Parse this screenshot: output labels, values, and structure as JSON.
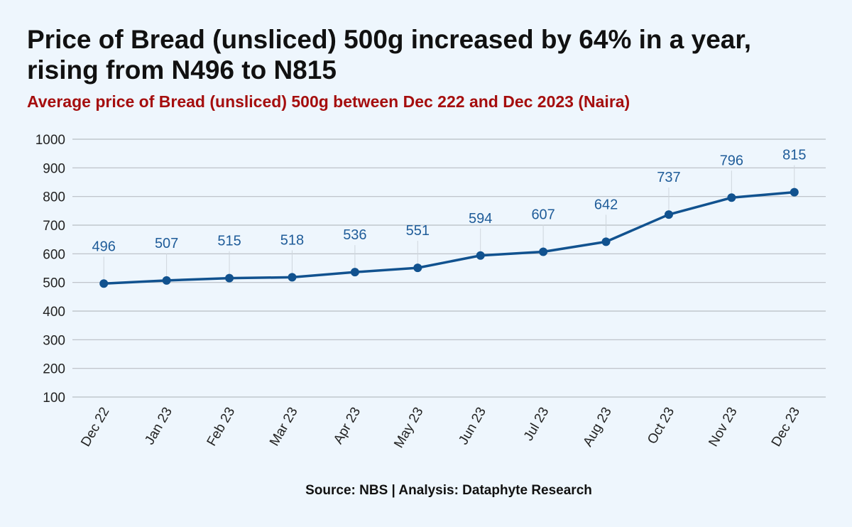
{
  "title": "Price of Bread (unsliced) 500g increased by 64% in a year, rising from N496 to N815",
  "subtitle": "Average price of Bread (unsliced) 500g between Dec 222 and Dec 2023 (Naira)",
  "source": "Source: NBS | Analysis: Dataphyte Research",
  "colors": {
    "line": "#11528f",
    "label": "#1f5c99",
    "grid": "#b9bec4",
    "subtitle": "#a50e0e"
  },
  "chart_data": {
    "type": "line",
    "title": "Price of Bread (unsliced) 500g increased by 64% in a year, rising from N496 to N815",
    "subtitle": "Average price of Bread (unsliced) 500g between Dec 222 and Dec 2023 (Naira)",
    "xlabel": "",
    "ylabel": "",
    "categories": [
      "Dec 22",
      "Jan 23",
      "Feb 23",
      "Mar 23",
      "Apr 23",
      "May 23",
      "Jun 23",
      "Jul 23",
      "Aug 23",
      "Oct 23",
      "Nov 23",
      "Dec 23"
    ],
    "series": [
      {
        "values": [
          496,
          507,
          515,
          518,
          536,
          551,
          594,
          607,
          642,
          737,
          796,
          815
        ]
      }
    ],
    "ylim": [
      100,
      1000
    ],
    "yticks": [
      100,
      200,
      300,
      400,
      500,
      600,
      700,
      800,
      900,
      1000
    ],
    "data_labels": true,
    "grid": true,
    "legend": "none"
  }
}
